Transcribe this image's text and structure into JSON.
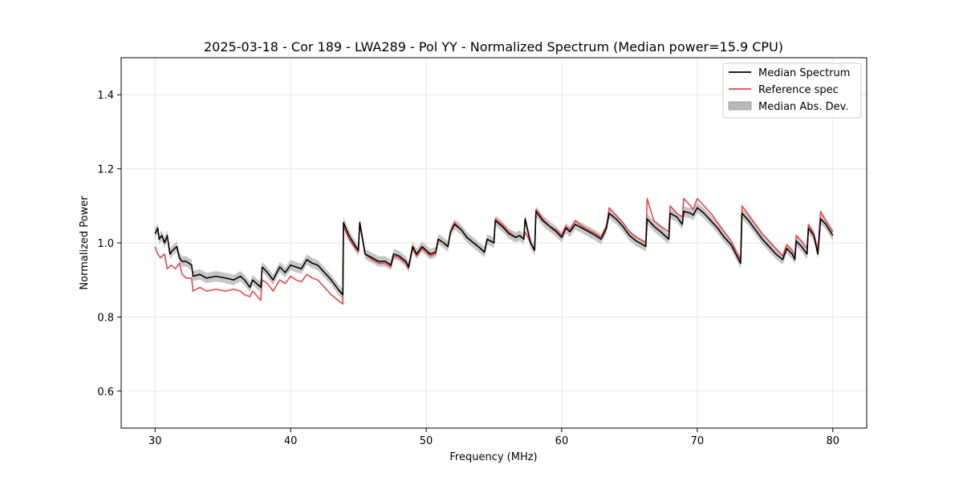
{
  "chart_data": {
    "type": "line",
    "title": "2025-03-18 - Cor 189 - LWA289 - Pol YY - Normalized Spectrum (Median power=15.9 CPU)",
    "xlabel": "Frequency (MHz)",
    "ylabel": "Normalized Power",
    "xlim": [
      27.5,
      82.5
    ],
    "ylim": [
      0.5,
      1.5
    ],
    "xticks": [
      30,
      40,
      50,
      60,
      70,
      80
    ],
    "xtick_labels": [
      "30",
      "40",
      "50",
      "60",
      "70",
      "80"
    ],
    "yticks": [
      0.6,
      0.8,
      1.0,
      1.2,
      1.4
    ],
    "ytick_labels": [
      "0.6",
      "0.8",
      "1.0",
      "1.2",
      "1.4"
    ],
    "grid": true,
    "legend_position": "top-right",
    "legend": [
      "Median Spectrum",
      "Reference spec",
      "Median Abs. Dev."
    ],
    "colors": {
      "median": "#000000",
      "reference": "#e8464a",
      "mad": "#b8b8b8",
      "grid": "#e6e6e6"
    },
    "series": [
      {
        "name": "Median Spectrum",
        "x": [
          30.0,
          30.2,
          30.3,
          30.5,
          30.7,
          30.9,
          31.1,
          31.3,
          31.6,
          31.8,
          32.0,
          32.3,
          32.7,
          32.8,
          33.3,
          33.8,
          34.5,
          35.2,
          35.8,
          36.3,
          36.6,
          37.0,
          37.2,
          37.8,
          37.9,
          38.3,
          38.7,
          39.2,
          39.6,
          40.0,
          40.4,
          40.8,
          41.2,
          41.6,
          42.0,
          42.5,
          43.0,
          43.5,
          43.85,
          43.9,
          44.3,
          44.8,
          45.0,
          45.1,
          45.5,
          46.0,
          46.5,
          47.0,
          47.4,
          47.6,
          48.0,
          48.5,
          48.7,
          49.0,
          49.3,
          49.7,
          50.0,
          50.3,
          50.7,
          50.9,
          51.3,
          51.6,
          51.8,
          52.1,
          52.6,
          53.0,
          53.5,
          54.0,
          54.3,
          54.5,
          55.0,
          55.1,
          55.6,
          56.1,
          56.6,
          56.9,
          57.2,
          57.3,
          57.7,
          58.0,
          58.1,
          58.6,
          59.1,
          59.6,
          60.0,
          60.3,
          60.6,
          61.0,
          61.5,
          62.0,
          62.5,
          62.9,
          63.3,
          63.5,
          64.0,
          64.5,
          65.0,
          65.5,
          66.0,
          66.2,
          66.3,
          66.8,
          67.3,
          67.9,
          68.0,
          68.5,
          68.9,
          69.0,
          69.5,
          69.7,
          70.0,
          70.5,
          71.0,
          71.5,
          72.0,
          72.5,
          73.2,
          73.3,
          73.8,
          74.3,
          74.8,
          75.3,
          75.8,
          76.3,
          76.6,
          77.0,
          77.2,
          77.3,
          77.7,
          78.1,
          78.2,
          78.6,
          78.9,
          79.1,
          79.5,
          80.0
        ],
        "values": [
          1.025,
          1.04,
          1.01,
          1.02,
          1.0,
          1.02,
          0.97,
          0.98,
          0.99,
          0.96,
          0.95,
          0.95,
          0.94,
          0.91,
          0.915,
          0.905,
          0.91,
          0.905,
          0.9,
          0.91,
          0.9,
          0.88,
          0.9,
          0.88,
          0.935,
          0.92,
          0.9,
          0.935,
          0.92,
          0.94,
          0.935,
          0.93,
          0.955,
          0.945,
          0.94,
          0.92,
          0.9,
          0.875,
          0.86,
          1.055,
          1.02,
          0.99,
          0.98,
          1.055,
          0.97,
          0.96,
          0.95,
          0.95,
          0.94,
          0.97,
          0.965,
          0.95,
          0.935,
          0.99,
          0.97,
          0.99,
          0.98,
          0.97,
          0.975,
          1.01,
          1.0,
          0.99,
          1.03,
          1.05,
          1.035,
          1.015,
          1.0,
          0.985,
          0.975,
          1.01,
          1.0,
          1.06,
          1.045,
          1.025,
          1.015,
          1.02,
          1.01,
          1.065,
          1.0,
          0.98,
          1.085,
          1.06,
          1.045,
          1.03,
          1.015,
          1.04,
          1.03,
          1.05,
          1.04,
          1.03,
          1.02,
          1.01,
          1.04,
          1.08,
          1.065,
          1.045,
          1.02,
          1.005,
          0.995,
          0.99,
          1.065,
          1.045,
          1.03,
          1.01,
          1.08,
          1.07,
          1.05,
          1.085,
          1.08,
          1.075,
          1.095,
          1.08,
          1.06,
          1.04,
          1.015,
          0.995,
          0.945,
          1.08,
          1.06,
          1.035,
          1.01,
          0.99,
          0.97,
          0.955,
          0.985,
          0.97,
          0.955,
          1.005,
          0.99,
          0.97,
          1.04,
          1.02,
          0.97,
          1.065,
          1.05,
          1.02
        ]
      },
      {
        "name": "Reference spec",
        "x": [
          30.0,
          30.2,
          30.4,
          30.7,
          30.9,
          31.2,
          31.5,
          31.8,
          32.0,
          32.3,
          32.7,
          32.8,
          33.3,
          33.8,
          34.5,
          35.2,
          35.8,
          36.3,
          36.6,
          37.0,
          37.2,
          37.8,
          37.9,
          38.3,
          38.7,
          39.2,
          39.6,
          40.0,
          40.4,
          40.8,
          41.2,
          41.6,
          42.0,
          42.5,
          43.0,
          43.5,
          43.85,
          43.9,
          44.3,
          44.8,
          45.0,
          45.1,
          45.5,
          46.0,
          46.5,
          47.0,
          47.4,
          47.6,
          48.0,
          48.5,
          48.7,
          49.0,
          49.3,
          49.7,
          50.0,
          50.3,
          50.7,
          50.9,
          51.3,
          51.6,
          51.8,
          52.1,
          52.6,
          53.0,
          53.5,
          54.0,
          54.3,
          54.5,
          55.0,
          55.1,
          55.6,
          56.1,
          56.6,
          56.9,
          57.2,
          57.3,
          57.7,
          58.0,
          58.1,
          58.6,
          59.1,
          59.6,
          60.0,
          60.3,
          60.6,
          61.0,
          61.5,
          62.0,
          62.5,
          62.9,
          63.3,
          63.5,
          64.0,
          64.5,
          65.0,
          65.5,
          66.0,
          66.2,
          66.3,
          66.8,
          67.3,
          67.9,
          68.0,
          68.5,
          68.9,
          69.0,
          69.5,
          69.7,
          70.0,
          70.5,
          71.0,
          71.5,
          72.0,
          72.5,
          73.2,
          73.3,
          73.8,
          74.3,
          74.8,
          75.3,
          75.8,
          76.3,
          76.6,
          77.0,
          77.2,
          77.3,
          77.7,
          78.1,
          78.2,
          78.6,
          78.9,
          79.1,
          79.5,
          80.0
        ],
        "values": [
          0.99,
          0.97,
          0.96,
          0.97,
          0.93,
          0.94,
          0.93,
          0.945,
          0.915,
          0.905,
          0.905,
          0.87,
          0.88,
          0.87,
          0.875,
          0.87,
          0.875,
          0.87,
          0.86,
          0.855,
          0.87,
          0.845,
          0.9,
          0.89,
          0.87,
          0.9,
          0.89,
          0.91,
          0.9,
          0.895,
          0.915,
          0.905,
          0.9,
          0.88,
          0.86,
          0.845,
          0.835,
          1.045,
          1.01,
          0.985,
          0.975,
          1.055,
          0.97,
          0.955,
          0.945,
          0.945,
          0.935,
          0.965,
          0.96,
          0.945,
          0.93,
          0.985,
          0.965,
          0.985,
          0.975,
          0.965,
          0.97,
          1.01,
          1.0,
          0.99,
          1.03,
          1.055,
          1.035,
          1.015,
          1.0,
          0.985,
          0.975,
          1.01,
          1.0,
          1.065,
          1.05,
          1.03,
          1.015,
          1.02,
          1.01,
          1.03,
          1.0,
          0.98,
          1.09,
          1.065,
          1.045,
          1.035,
          1.02,
          1.045,
          1.035,
          1.06,
          1.045,
          1.035,
          1.025,
          1.015,
          1.045,
          1.095,
          1.075,
          1.055,
          1.03,
          1.015,
          1.005,
          1.0,
          1.12,
          1.06,
          1.045,
          1.03,
          1.1,
          1.08,
          1.07,
          1.12,
          1.1,
          1.09,
          1.12,
          1.1,
          1.08,
          1.055,
          1.03,
          1.005,
          0.955,
          1.1,
          1.075,
          1.05,
          1.025,
          1.005,
          0.985,
          0.965,
          0.995,
          0.98,
          0.965,
          1.02,
          1.005,
          0.985,
          1.05,
          1.025,
          0.98,
          1.085,
          1.06,
          1.03
        ]
      }
    ],
    "band": {
      "name": "Median Abs. Dev.",
      "half_width": 0.014
    }
  }
}
